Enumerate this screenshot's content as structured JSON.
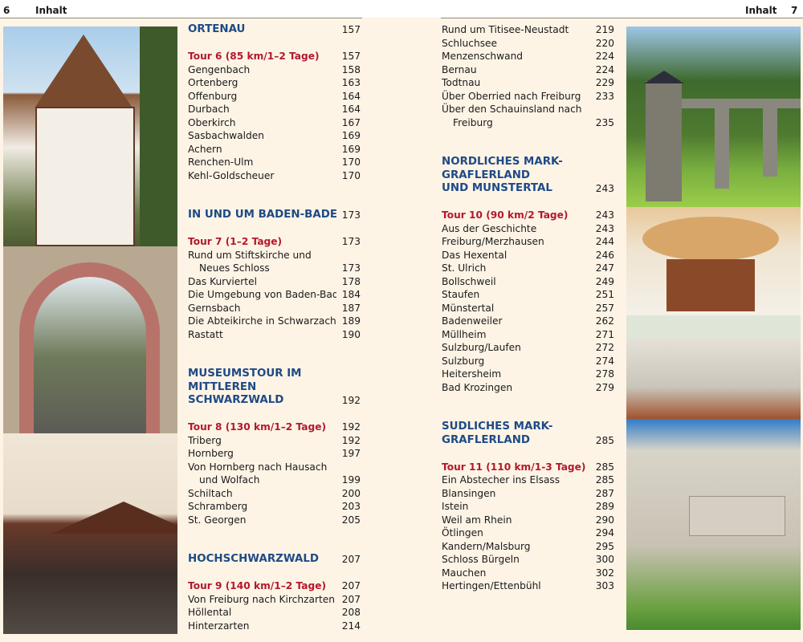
{
  "left_page": {
    "page_number": "6",
    "running_head": "Inhalt"
  },
  "right_page": {
    "page_number": "7",
    "running_head": "Inhalt"
  },
  "left_column": [
    {
      "type": "heading",
      "text": "ORTENAU",
      "page": "157"
    },
    {
      "type": "blank"
    },
    {
      "type": "tour",
      "text": "Tour 6 (85 km/1–2 Tage)",
      "page": "157"
    },
    {
      "type": "item",
      "text": "Gengenbach",
      "page": "158"
    },
    {
      "type": "item",
      "text": "Ortenberg",
      "page": "163"
    },
    {
      "type": "item",
      "text": "Offenburg",
      "page": "164"
    },
    {
      "type": "item",
      "text": "Durbach",
      "page": "164"
    },
    {
      "type": "item",
      "text": "Oberkirch",
      "page": "167"
    },
    {
      "type": "item",
      "text": "Sasbachwalden",
      "page": "169"
    },
    {
      "type": "item",
      "text": "Achern",
      "page": "169"
    },
    {
      "type": "item",
      "text": "Renchen-Ulm",
      "page": "170"
    },
    {
      "type": "item",
      "text": "Kehl-Goldscheuer",
      "page": "170"
    },
    {
      "type": "blank"
    },
    {
      "type": "blank"
    },
    {
      "type": "heading",
      "text": "IN UND UM BADEN-BADEN",
      "page": "173"
    },
    {
      "type": "blank"
    },
    {
      "type": "tour",
      "text": "Tour 7 (1–2 Tage)",
      "page": "173"
    },
    {
      "type": "item",
      "text": "Rund um Stiftskirche und",
      "page": ""
    },
    {
      "type": "indent",
      "text": "Neues Schloss",
      "page": "173"
    },
    {
      "type": "item",
      "text": "Das Kurviertel",
      "page": "178"
    },
    {
      "type": "item",
      "text": "Die Umgebung von Baden-Baden",
      "page": "184"
    },
    {
      "type": "item",
      "text": "Gernsbach",
      "page": "187"
    },
    {
      "type": "item",
      "text": "Die Abteikirche in Schwarzach",
      "page": "189"
    },
    {
      "type": "item",
      "text": "Rastatt",
      "page": "190"
    },
    {
      "type": "blank"
    },
    {
      "type": "blank"
    },
    {
      "type": "heading",
      "text": "MUSEUMSTOUR IM",
      "page": ""
    },
    {
      "type": "heading",
      "text": "MITTLEREN",
      "page": ""
    },
    {
      "type": "heading",
      "text": "SCHWARZWALD",
      "page": "192"
    },
    {
      "type": "blank"
    },
    {
      "type": "tour",
      "text": "Tour 8 (130 km/1–2 Tage)",
      "page": "192"
    },
    {
      "type": "item",
      "text": "Triberg",
      "page": "192"
    },
    {
      "type": "item",
      "text": "Hornberg",
      "page": "197"
    },
    {
      "type": "item",
      "text": "Von Hornberg nach Hausach",
      "page": ""
    },
    {
      "type": "indent",
      "text": "und Wolfach",
      "page": "199"
    },
    {
      "type": "item",
      "text": "Schiltach",
      "page": "200"
    },
    {
      "type": "item",
      "text": "Schramberg",
      "page": "203"
    },
    {
      "type": "item",
      "text": "St. Georgen",
      "page": "205"
    },
    {
      "type": "blank"
    },
    {
      "type": "blank"
    },
    {
      "type": "heading",
      "text": "HOCHSCHWARZWALD",
      "page": "207"
    },
    {
      "type": "blank"
    },
    {
      "type": "tour",
      "text": "Tour 9 (140 km/1–2 Tage)",
      "page": "207"
    },
    {
      "type": "item",
      "text": "Von Freiburg nach Kirchzarten",
      "page": "207"
    },
    {
      "type": "item",
      "text": "Höllental",
      "page": "208"
    },
    {
      "type": "item",
      "text": "Hinterzarten",
      "page": "214"
    }
  ],
  "right_column": [
    {
      "type": "item",
      "text": "Rund um Titisee-Neustadt",
      "page": "219"
    },
    {
      "type": "item",
      "text": "Schluchsee",
      "page": "220"
    },
    {
      "type": "item",
      "text": "Menzenschwand",
      "page": "224"
    },
    {
      "type": "item",
      "text": "Bernau",
      "page": "224"
    },
    {
      "type": "item",
      "text": "Todtnau",
      "page": "229"
    },
    {
      "type": "item",
      "text": "Über Oberried nach Freiburg",
      "page": "233"
    },
    {
      "type": "item",
      "text": "Über den Schauinsland nach",
      "page": ""
    },
    {
      "type": "indent",
      "text": "Freiburg",
      "page": "235"
    },
    {
      "type": "blank"
    },
    {
      "type": "blank"
    },
    {
      "type": "heading",
      "text": "NÖRDLICHES MARK-",
      "page": ""
    },
    {
      "type": "heading",
      "text": "GRÄFLERLAND",
      "page": ""
    },
    {
      "type": "heading",
      "text": "UND MÜNSTERTAL",
      "page": "243"
    },
    {
      "type": "blank"
    },
    {
      "type": "tour",
      "text": "Tour 10 (90 km/2 Tage)",
      "page": "243"
    },
    {
      "type": "item",
      "text": "Aus der Geschichte",
      "page": "243"
    },
    {
      "type": "item",
      "text": "Freiburg/Merzhausen",
      "page": "244"
    },
    {
      "type": "item",
      "text": "Das Hexental",
      "page": "246"
    },
    {
      "type": "item",
      "text": "St. Ulrich",
      "page": "247"
    },
    {
      "type": "item",
      "text": "Bollschweil",
      "page": "249"
    },
    {
      "type": "item",
      "text": "Staufen",
      "page": "251"
    },
    {
      "type": "item",
      "text": "Münstertal",
      "page": "257"
    },
    {
      "type": "item",
      "text": "Badenweiler",
      "page": "262"
    },
    {
      "type": "item",
      "text": "Müllheim",
      "page": "271"
    },
    {
      "type": "item",
      "text": "Sulzburg/Laufen",
      "page": "272"
    },
    {
      "type": "item",
      "text": "Sulzburg",
      "page": "274"
    },
    {
      "type": "item",
      "text": "Heitersheim",
      "page": "278"
    },
    {
      "type": "item",
      "text": "Bad Krozingen",
      "page": "279"
    },
    {
      "type": "blank"
    },
    {
      "type": "blank"
    },
    {
      "type": "heading",
      "text": "SÜDLICHES MARK-",
      "page": ""
    },
    {
      "type": "heading",
      "text": "GRÄFLERLAND",
      "page": "285"
    },
    {
      "type": "blank"
    },
    {
      "type": "tour",
      "text": "Tour 11 (110 km/1-3 Tage)",
      "page": "285"
    },
    {
      "type": "item",
      "text": "Ein Abstecher ins Elsass",
      "page": "285"
    },
    {
      "type": "item",
      "text": "Blansingen",
      "page": "287"
    },
    {
      "type": "item",
      "text": "Istein",
      "page": "289"
    },
    {
      "type": "item",
      "text": "Weil am Rhein",
      "page": "290"
    },
    {
      "type": "item",
      "text": "Ötlingen",
      "page": "294"
    },
    {
      "type": "item",
      "text": "Kandern/Malsburg",
      "page": "295"
    },
    {
      "type": "item",
      "text": "Schloss Bürgeln",
      "page": "300"
    },
    {
      "type": "item",
      "text": "Mauchen",
      "page": "302"
    },
    {
      "type": "item",
      "text": "Hertingen/Ettenbühl",
      "page": "303"
    }
  ],
  "colors": {
    "heading": "#1f4a86",
    "tour": "#b3192b",
    "background": "#fdf4e6"
  }
}
